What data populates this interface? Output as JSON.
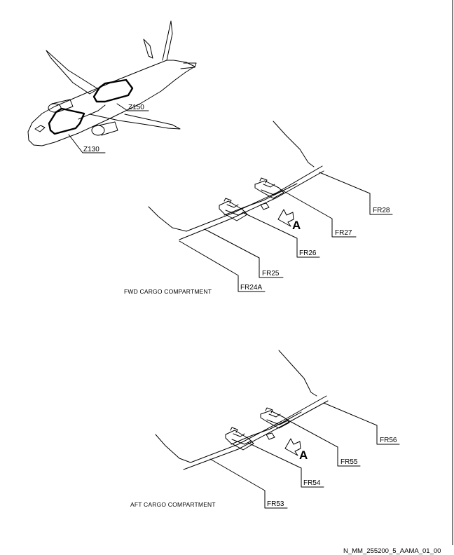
{
  "diagram": {
    "aircraft": {
      "zones": [
        "Z150",
        "Z130"
      ]
    },
    "forward_compartment": {
      "caption": "FWD CARGO COMPARTMENT",
      "view_label": "A",
      "frames": [
        "FR28",
        "FR27",
        "FR26",
        "FR25",
        "FR24A"
      ]
    },
    "aft_compartment": {
      "caption": "AFT CARGO COMPARTMENT",
      "view_label": "A",
      "frames": [
        "FR56",
        "FR55",
        "FR54",
        "FR53"
      ]
    },
    "reference": "N_MM_255200_5_AAMA_01_00"
  }
}
